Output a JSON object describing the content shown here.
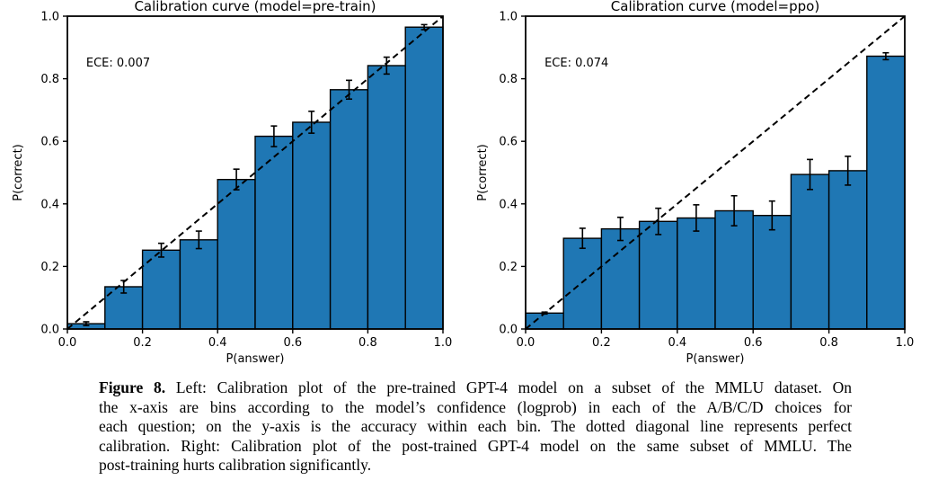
{
  "caption": {
    "label": "Figure 8.",
    "lines": [
      " Left: Calibration plot of the pre-trained GPT-4 model on a subset of the MMLU dataset. On",
      "the x-axis are bins according to the model’s confidence (logprob) in each of the A/B/C/D choices for",
      "each question; on the y-axis is the accuracy within each bin. The dotted diagonal line represents perfect",
      "calibration. Right: Calibration plot of the post-trained GPT-4 model on the same subset of MMLU. The",
      "post-training hurts calibration significantly."
    ]
  },
  "chart_data": [
    {
      "type": "bar",
      "title": "Calibration curve (model=pre-train)",
      "xlabel": "P(answer)",
      "ylabel": "P(correct)",
      "annotation": "ECE: 0.007",
      "annotation_pos": [
        0.05,
        0.85
      ],
      "xlim": [
        0.0,
        1.0
      ],
      "ylim": [
        0.0,
        1.0
      ],
      "xtick_labels": [
        "0.0",
        "0.2",
        "0.4",
        "0.6",
        "0.8",
        "1.0"
      ],
      "ytick_labels": [
        "0.0",
        "0.2",
        "0.4",
        "0.6",
        "0.8",
        "1.0"
      ],
      "tick_values": [
        0.0,
        0.2,
        0.4,
        0.6,
        0.8,
        1.0
      ],
      "bin_edges": [
        0.0,
        0.1,
        0.2,
        0.3,
        0.4,
        0.5,
        0.6,
        0.7,
        0.8,
        0.9,
        1.0
      ],
      "values": [
        0.017,
        0.135,
        0.252,
        0.285,
        0.478,
        0.616,
        0.661,
        0.765,
        0.842,
        0.965
      ],
      "errors": [
        0.006,
        0.02,
        0.022,
        0.028,
        0.033,
        0.033,
        0.035,
        0.03,
        0.027,
        0.008
      ],
      "bar_color": "#1f77b4",
      "bar_edge_color": "#000000",
      "diagonal_line": {
        "style": "dashed",
        "from": [
          0.0,
          0.0
        ],
        "to": [
          1.0,
          1.0
        ],
        "meaning": "perfect calibration"
      },
      "grid": false,
      "legend": "none"
    },
    {
      "type": "bar",
      "title": "Calibration curve (model=ppo)",
      "xlabel": "P(answer)",
      "ylabel": "P(correct)",
      "annotation": "ECE: 0.074",
      "annotation_pos": [
        0.05,
        0.85
      ],
      "xlim": [
        0.0,
        1.0
      ],
      "ylim": [
        0.0,
        1.0
      ],
      "xtick_labels": [
        "0.0",
        "0.2",
        "0.4",
        "0.6",
        "0.8",
        "1.0"
      ],
      "ytick_labels": [
        "0.0",
        "0.2",
        "0.4",
        "0.6",
        "0.8",
        "1.0"
      ],
      "tick_values": [
        0.0,
        0.2,
        0.4,
        0.6,
        0.8,
        1.0
      ],
      "bin_edges": [
        0.0,
        0.1,
        0.2,
        0.3,
        0.4,
        0.5,
        0.6,
        0.7,
        0.8,
        0.9,
        1.0
      ],
      "values": [
        0.051,
        0.29,
        0.32,
        0.344,
        0.355,
        0.378,
        0.363,
        0.494,
        0.506,
        0.872
      ],
      "errors": [
        0.003,
        0.032,
        0.037,
        0.042,
        0.042,
        0.048,
        0.046,
        0.048,
        0.046,
        0.011
      ],
      "bar_color": "#1f77b4",
      "bar_edge_color": "#000000",
      "diagonal_line": {
        "style": "dashed",
        "from": [
          0.0,
          0.0
        ],
        "to": [
          1.0,
          1.0
        ],
        "meaning": "perfect calibration"
      },
      "grid": false,
      "legend": "none"
    }
  ]
}
